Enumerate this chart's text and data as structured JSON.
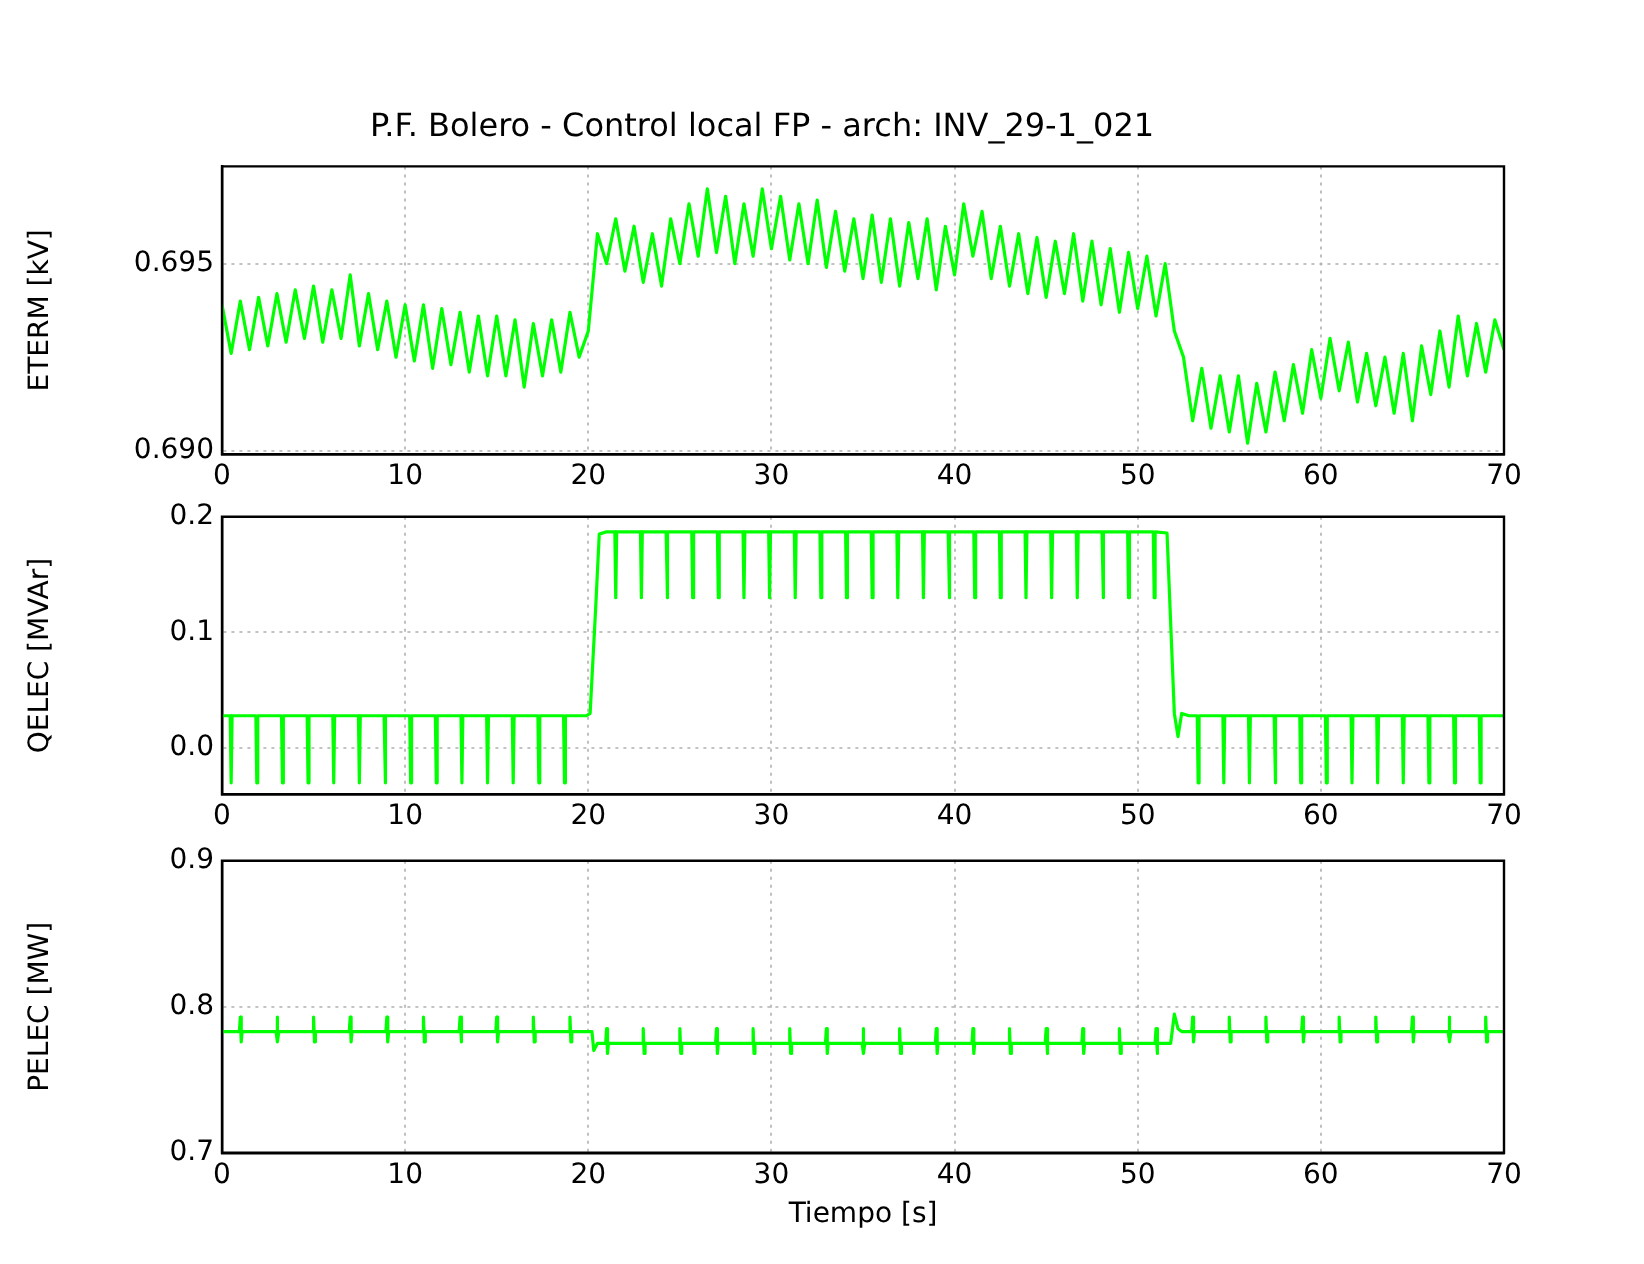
{
  "chart_data": [
    {
      "type": "line",
      "title": "P.F. Bolero - Control local FP - arch: INV_29-1_021",
      "ylabel": "ETERM [kV]",
      "xlim": [
        0,
        70
      ],
      "xticks": [
        0,
        10,
        20,
        30,
        40,
        50,
        60,
        70
      ],
      "ylim": [
        0.6899,
        0.6976
      ],
      "yticks": [
        {
          "value": 0.69,
          "label": "0.690"
        },
        {
          "value": 0.695,
          "label": "0.695"
        }
      ],
      "grid": true,
      "x": [
        0,
        0.5,
        1,
        1.5,
        2,
        2.5,
        3,
        3.5,
        4,
        4.5,
        5,
        5.5,
        6,
        6.5,
        7,
        7.5,
        8,
        8.5,
        9,
        9.5,
        10,
        10.5,
        11,
        11.5,
        12,
        12.5,
        13,
        13.5,
        14,
        14.5,
        15,
        15.5,
        16,
        16.5,
        17,
        17.5,
        18,
        18.5,
        19,
        19.5,
        20,
        20.5,
        21,
        21.5,
        22,
        22.5,
        23,
        23.5,
        24,
        24.5,
        25,
        25.5,
        26,
        26.5,
        27,
        27.5,
        28,
        28.5,
        29,
        29.5,
        30,
        30.5,
        31,
        31.5,
        32,
        32.5,
        33,
        33.5,
        34,
        34.5,
        35,
        35.5,
        36,
        36.5,
        37,
        37.5,
        38,
        38.5,
        39,
        39.5,
        40,
        40.5,
        41,
        41.5,
        42,
        42.5,
        43,
        43.5,
        44,
        44.5,
        45,
        45.5,
        46,
        46.5,
        47,
        47.5,
        48,
        48.5,
        49,
        49.5,
        50,
        50.5,
        51,
        51.5,
        52,
        52.5,
        53,
        53.5,
        54,
        54.5,
        55,
        55.5,
        56,
        56.5,
        57,
        57.5,
        58,
        58.5,
        59,
        59.5,
        60,
        60.5,
        61,
        61.5,
        62,
        62.5,
        63,
        63.5,
        64,
        64.5,
        65,
        65.5,
        66,
        66.5,
        67,
        67.5,
        68,
        68.5,
        69,
        69.5,
        70
      ],
      "series": [
        {
          "color": "#00ff00",
          "values": [
            0.6939,
            0.6926,
            0.694,
            0.6927,
            0.6941,
            0.6928,
            0.6942,
            0.6929,
            0.6943,
            0.693,
            0.6944,
            0.6929,
            0.6943,
            0.693,
            0.6947,
            0.6928,
            0.6942,
            0.6927,
            0.694,
            0.6925,
            0.6939,
            0.6924,
            0.6939,
            0.6922,
            0.6938,
            0.6923,
            0.6937,
            0.6921,
            0.6936,
            0.692,
            0.6936,
            0.692,
            0.6935,
            0.6917,
            0.6934,
            0.692,
            0.6935,
            0.6921,
            0.6937,
            0.6925,
            0.6932,
            0.6958,
            0.695,
            0.6962,
            0.6948,
            0.696,
            0.6945,
            0.6958,
            0.6944,
            0.6962,
            0.695,
            0.6966,
            0.6952,
            0.697,
            0.6953,
            0.6968,
            0.695,
            0.6966,
            0.6952,
            0.697,
            0.6954,
            0.6968,
            0.6951,
            0.6966,
            0.695,
            0.6967,
            0.6949,
            0.6964,
            0.6948,
            0.6962,
            0.6946,
            0.6963,
            0.6945,
            0.6962,
            0.6944,
            0.6961,
            0.6946,
            0.6962,
            0.6943,
            0.696,
            0.6947,
            0.6966,
            0.6952,
            0.6964,
            0.6946,
            0.696,
            0.6944,
            0.6958,
            0.6942,
            0.6957,
            0.6941,
            0.6956,
            0.6942,
            0.6958,
            0.694,
            0.6956,
            0.6939,
            0.6954,
            0.6937,
            0.6953,
            0.6938,
            0.6952,
            0.6936,
            0.695,
            0.6932,
            0.6925,
            0.6908,
            0.6922,
            0.6906,
            0.692,
            0.6905,
            0.692,
            0.6902,
            0.6918,
            0.6905,
            0.6921,
            0.6908,
            0.6923,
            0.691,
            0.6927,
            0.6914,
            0.693,
            0.6916,
            0.6929,
            0.6913,
            0.6926,
            0.6912,
            0.6925,
            0.691,
            0.6926,
            0.6908,
            0.6928,
            0.6915,
            0.6932,
            0.6917,
            0.6936,
            0.692,
            0.6934,
            0.6921,
            0.6935,
            0.6927
          ]
        }
      ]
    },
    {
      "type": "line",
      "ylabel": "QELEC [MVAr]",
      "xlim": [
        0,
        70
      ],
      "xticks": [
        0,
        10,
        20,
        30,
        40,
        50,
        60,
        70
      ],
      "ylim": [
        -0.04,
        0.2
      ],
      "yticks": [
        {
          "value": 0,
          "label": "0.0"
        },
        0.1,
        0.2
      ],
      "grid": true,
      "x": [
        0,
        0.45,
        0.5,
        0.55,
        1.85,
        1.9,
        1.95,
        3.25,
        3.3,
        3.35,
        4.65,
        4.7,
        4.75,
        6.05,
        6.1,
        6.15,
        7.45,
        7.5,
        7.55,
        8.85,
        8.9,
        8.95,
        10.25,
        10.3,
        10.35,
        11.65,
        11.7,
        11.75,
        13.05,
        13.1,
        13.15,
        14.45,
        14.5,
        14.55,
        15.85,
        15.9,
        15.95,
        17.25,
        17.3,
        17.35,
        18.65,
        18.7,
        18.75,
        19.9,
        20.1,
        20.4,
        20.6,
        21.0,
        21.45,
        21.5,
        21.55,
        22.85,
        22.9,
        22.95,
        24.25,
        24.3,
        24.35,
        25.65,
        25.7,
        25.75,
        27.05,
        27.1,
        27.15,
        28.45,
        28.5,
        28.55,
        29.85,
        29.9,
        29.95,
        31.25,
        31.3,
        31.35,
        32.65,
        32.7,
        32.75,
        34.05,
        34.1,
        34.15,
        35.45,
        35.5,
        35.55,
        36.85,
        36.9,
        36.95,
        38.25,
        38.3,
        38.35,
        39.65,
        39.7,
        39.75,
        41.05,
        41.1,
        41.15,
        42.45,
        42.5,
        42.55,
        43.85,
        43.9,
        43.95,
        45.25,
        45.3,
        45.35,
        46.65,
        46.7,
        46.75,
        48.05,
        48.1,
        48.15,
        49.45,
        49.5,
        49.55,
        50.85,
        50.9,
        50.95,
        51.6,
        52.0,
        52.2,
        52.4,
        52.8,
        53.25,
        53.3,
        53.35,
        54.65,
        54.7,
        54.75,
        56.05,
        56.1,
        56.15,
        57.45,
        57.5,
        57.55,
        58.85,
        58.9,
        58.95,
        60.25,
        60.3,
        60.35,
        61.65,
        61.7,
        61.75,
        63.05,
        63.1,
        63.15,
        64.45,
        64.5,
        64.55,
        65.85,
        65.9,
        65.95,
        67.25,
        67.3,
        67.35,
        68.65,
        68.7,
        68.75,
        70
      ],
      "series": [
        {
          "color": "#00ff00",
          "values": [
            0.028,
            0.028,
            -0.03,
            0.028,
            0.028,
            -0.03,
            0.028,
            0.028,
            -0.03,
            0.028,
            0.028,
            -0.03,
            0.028,
            0.028,
            -0.03,
            0.028,
            0.028,
            -0.03,
            0.028,
            0.028,
            -0.03,
            0.028,
            0.028,
            -0.03,
            0.028,
            0.028,
            -0.03,
            0.028,
            0.028,
            -0.03,
            0.028,
            0.028,
            -0.03,
            0.028,
            0.028,
            -0.03,
            0.028,
            0.028,
            -0.03,
            0.028,
            0.028,
            -0.03,
            0.028,
            0.028,
            0.03,
            0.12,
            0.185,
            0.187,
            0.187,
            0.13,
            0.187,
            0.187,
            0.13,
            0.187,
            0.187,
            0.13,
            0.187,
            0.187,
            0.13,
            0.187,
            0.187,
            0.13,
            0.187,
            0.187,
            0.13,
            0.187,
            0.187,
            0.13,
            0.187,
            0.187,
            0.13,
            0.187,
            0.187,
            0.13,
            0.187,
            0.187,
            0.13,
            0.187,
            0.187,
            0.13,
            0.187,
            0.187,
            0.13,
            0.187,
            0.187,
            0.13,
            0.187,
            0.187,
            0.13,
            0.187,
            0.187,
            0.13,
            0.187,
            0.187,
            0.13,
            0.187,
            0.187,
            0.13,
            0.187,
            0.187,
            0.13,
            0.187,
            0.187,
            0.13,
            0.187,
            0.187,
            0.13,
            0.187,
            0.187,
            0.13,
            0.187,
            0.187,
            0.13,
            0.187,
            0.186,
            0.03,
            0.01,
            0.03,
            0.028,
            0.028,
            -0.03,
            0.028,
            0.028,
            -0.03,
            0.028,
            0.028,
            -0.03,
            0.028,
            0.028,
            -0.03,
            0.028,
            0.028,
            -0.03,
            0.028,
            0.028,
            -0.03,
            0.028,
            0.028,
            -0.03,
            0.028,
            0.028,
            -0.03,
            0.028,
            0.028,
            -0.03,
            0.028,
            0.028,
            -0.03,
            0.028,
            0.028,
            -0.03,
            0.028,
            0.028,
            -0.03,
            0.028,
            0.028
          ]
        }
      ]
    },
    {
      "type": "line",
      "ylabel": "PELEC [MW]",
      "xlabel": "Tiempo [s]",
      "xlim": [
        0,
        70
      ],
      "xticks": [
        0,
        10,
        20,
        30,
        40,
        50,
        60,
        70
      ],
      "ylim": [
        0.7,
        0.9
      ],
      "yticks": [
        0.7,
        0.8,
        0.9
      ],
      "grid": true,
      "x": [
        0,
        0.95,
        1,
        1.05,
        1.1,
        2.95,
        3,
        3.05,
        3.1,
        4.95,
        5,
        5.05,
        5.1,
        6.95,
        7,
        7.05,
        7.1,
        8.95,
        9,
        9.05,
        9.1,
        10.95,
        11,
        11.05,
        11.1,
        12.95,
        13,
        13.05,
        13.1,
        14.95,
        15,
        15.05,
        15.1,
        16.95,
        17,
        17.05,
        17.1,
        18.95,
        19,
        19.05,
        19.1,
        20.2,
        20.3,
        20.5,
        20.95,
        21,
        21.05,
        21.1,
        22.95,
        23,
        23.05,
        23.1,
        24.95,
        25,
        25.05,
        25.1,
        26.95,
        27,
        27.05,
        27.1,
        28.95,
        29,
        29.05,
        29.1,
        30.95,
        31,
        31.05,
        31.1,
        32.95,
        33,
        33.05,
        33.1,
        34.95,
        35,
        35.05,
        35.1,
        36.95,
        37,
        37.05,
        37.1,
        38.95,
        39,
        39.05,
        39.1,
        40.95,
        41,
        41.05,
        41.1,
        42.95,
        43,
        43.05,
        43.1,
        44.95,
        45,
        45.05,
        45.1,
        46.95,
        47,
        47.05,
        47.1,
        48.95,
        49,
        49.05,
        49.1,
        50.95,
        51,
        51.05,
        51.1,
        51.8,
        52,
        52.2,
        52.4,
        52.95,
        53,
        53.05,
        53.1,
        54.95,
        55,
        55.05,
        55.1,
        56.95,
        57,
        57.05,
        57.1,
        58.95,
        59,
        59.05,
        59.1,
        60.95,
        61,
        61.05,
        61.1,
        62.95,
        63,
        63.05,
        63.1,
        64.95,
        65,
        65.05,
        65.1,
        66.95,
        67,
        67.05,
        67.1,
        68.95,
        69,
        69.05,
        69.1,
        70
      ],
      "series": [
        {
          "color": "#00ff00",
          "values": [
            0.783,
            0.783,
            0.793,
            0.776,
            0.783,
            0.783,
            0.793,
            0.776,
            0.783,
            0.783,
            0.793,
            0.776,
            0.783,
            0.783,
            0.793,
            0.776,
            0.783,
            0.783,
            0.793,
            0.776,
            0.783,
            0.783,
            0.793,
            0.776,
            0.783,
            0.783,
            0.793,
            0.776,
            0.783,
            0.783,
            0.793,
            0.776,
            0.783,
            0.783,
            0.793,
            0.776,
            0.783,
            0.783,
            0.793,
            0.776,
            0.783,
            0.783,
            0.77,
            0.775,
            0.775,
            0.785,
            0.768,
            0.775,
            0.775,
            0.785,
            0.768,
            0.775,
            0.775,
            0.785,
            0.768,
            0.775,
            0.775,
            0.785,
            0.768,
            0.775,
            0.775,
            0.785,
            0.768,
            0.775,
            0.775,
            0.785,
            0.768,
            0.775,
            0.775,
            0.785,
            0.768,
            0.775,
            0.775,
            0.785,
            0.768,
            0.775,
            0.775,
            0.785,
            0.768,
            0.775,
            0.775,
            0.785,
            0.768,
            0.775,
            0.775,
            0.785,
            0.768,
            0.775,
            0.775,
            0.785,
            0.768,
            0.775,
            0.775,
            0.785,
            0.768,
            0.775,
            0.775,
            0.785,
            0.768,
            0.775,
            0.775,
            0.785,
            0.768,
            0.775,
            0.775,
            0.785,
            0.768,
            0.775,
            0.775,
            0.795,
            0.785,
            0.783,
            0.783,
            0.793,
            0.776,
            0.783,
            0.783,
            0.793,
            0.776,
            0.783,
            0.783,
            0.793,
            0.776,
            0.783,
            0.783,
            0.793,
            0.776,
            0.783,
            0.783,
            0.793,
            0.776,
            0.783,
            0.783,
            0.793,
            0.776,
            0.783,
            0.783,
            0.793,
            0.776,
            0.783,
            0.783,
            0.793,
            0.776,
            0.783,
            0.783,
            0.793,
            0.776,
            0.783,
            0.783
          ]
        }
      ]
    }
  ]
}
